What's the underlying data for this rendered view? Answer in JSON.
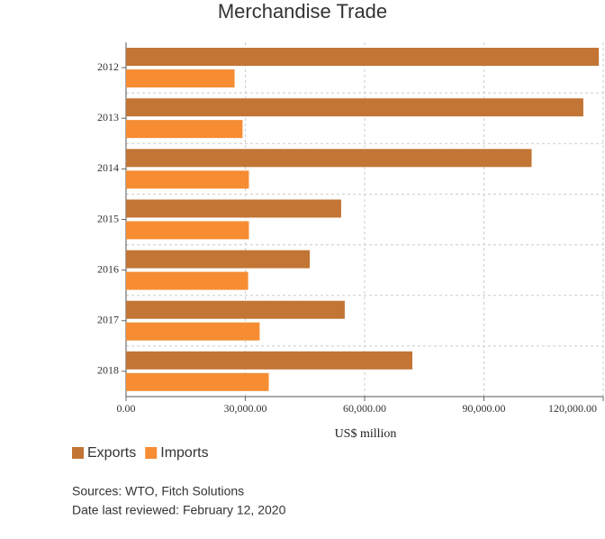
{
  "chart_data": {
    "type": "barh",
    "title": "Merchandise Trade",
    "xlabel": "US$ million",
    "categories": [
      "2012",
      "2013",
      "2014",
      "2015",
      "2016",
      "2017",
      "2018"
    ],
    "series": [
      {
        "name": "Exports",
        "color": "#c27535",
        "values": [
          118900,
          115000,
          102000,
          54100,
          46200,
          55000,
          72000
        ]
      },
      {
        "name": "Imports",
        "color": "#f68d33",
        "values": [
          27300,
          29300,
          30900,
          30900,
          30700,
          33600,
          35900
        ]
      }
    ],
    "xlim": [
      0,
      120000
    ],
    "xticks": [
      {
        "value": 0,
        "label": "0.00"
      },
      {
        "value": 30000,
        "label": "30,000.00"
      },
      {
        "value": 60000,
        "label": "60,000.00"
      },
      {
        "value": 90000,
        "label": "90,000.00"
      },
      {
        "value": 120000,
        "label": "120,000.00"
      }
    ],
    "grid": true,
    "notes": [
      "Sources: WTO, Fitch Solutions",
      "Date last reviewed: February 12, 2020"
    ]
  }
}
